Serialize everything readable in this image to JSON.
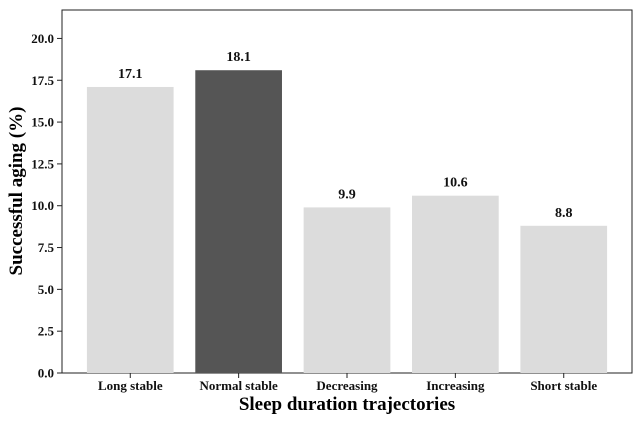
{
  "chart_data": {
    "type": "bar",
    "title": "",
    "xlabel": "Sleep duration trajectories",
    "ylabel": "Successful aging (%)",
    "categories": [
      "Long stable",
      "Normal stable",
      "Decreasing",
      "Increasing",
      "Short stable"
    ],
    "values": [
      17.1,
      18.1,
      9.9,
      10.6,
      8.8
    ],
    "value_labels": [
      "17.1",
      "18.1",
      "9.9",
      "10.6",
      "8.8"
    ],
    "yticks": [
      "0.0",
      "2.5",
      "5.0",
      "7.5",
      "10.0",
      "12.5",
      "15.0",
      "17.5",
      "20.0"
    ],
    "ylim": [
      0,
      21.7
    ],
    "grid": false,
    "bar_colors": [
      "#dcdcdc",
      "#555555",
      "#dcdcdc",
      "#dcdcdc",
      "#dcdcdc"
    ]
  }
}
